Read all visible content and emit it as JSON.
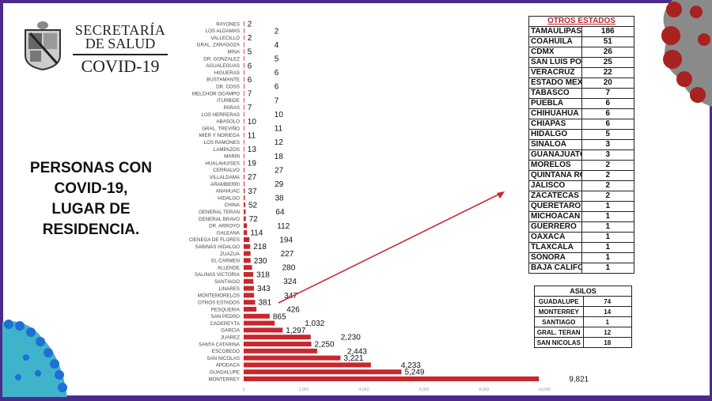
{
  "header": {
    "org_line1": "SECRETARÍA",
    "org_line2": "DE SALUD",
    "subtitle": "COVID-19"
  },
  "headline": [
    "PERSONAS CON",
    "COVID-19,",
    "LUGAR DE",
    "RESIDENCIA."
  ],
  "colors": {
    "bar": "#c8282d",
    "frame": "#4b2a8c",
    "table_title": "#c0262d"
  },
  "chart_data": {
    "type": "bar",
    "orientation": "horizontal",
    "title": "Personas con COVID-19, lugar de residencia",
    "xlim": [
      0,
      10000
    ],
    "xticks": [
      0,
      2000,
      4000,
      6000,
      8000,
      10000
    ],
    "xtick_labels": [
      "0",
      "2,000",
      "4,000",
      "6,000",
      "8,000",
      "10,000"
    ],
    "categories": [
      "RAYONES",
      "LOS ALDAMAS",
      "VALLECILLO",
      "GRAL. ZARAGOZA",
      "MINA",
      "DR. GONZALEZ",
      "AGUALEGUAS",
      "HIGUERAS",
      "BUSTAMANTE",
      "DR. COSS",
      "MELCHOR OCAMPO",
      "ITURBIDE",
      "PARAS",
      "LOS HERRERAS",
      "ABASOLO",
      "GRAL. TREVIÑO",
      "MIER Y NORIEGA",
      "LOS RAMONES",
      "LAMPAZOS",
      "MARIN",
      "HUALAHUISES",
      "CERRALVO",
      "VILLALDAMA",
      "ARAMBERRI",
      "ANAHUAC",
      "HIDALGO",
      "CHINA",
      "GENERAL TERAN",
      "GENERAL BRAVO",
      "DR. ARROYO",
      "GALEANA",
      "CIENEGA DE FLORES",
      "SABINAS HIDALGO",
      "ZUAZUA",
      "EL CARMEN",
      "ALLENDE",
      "SALINAS VICTORIA",
      "SANTIAGO",
      "LINARES",
      "MONTEMORELOS",
      "OTROS ESTADOS",
      "PESQUERIA",
      "SAN PEDRO",
      "CADEREYTA",
      "GARCIA",
      "JUAREZ",
      "SANTA CATARINA",
      "ESCOBEDO",
      "SAN NICOLAS",
      "APODACA",
      "GUADALUPE",
      "MONTERREY"
    ],
    "values": [
      2,
      2,
      2,
      4,
      5,
      5,
      6,
      6,
      6,
      6,
      7,
      7,
      7,
      10,
      10,
      11,
      11,
      12,
      13,
      18,
      19,
      27,
      27,
      29,
      37,
      38,
      52,
      64,
      72,
      112,
      114,
      194,
      218,
      227,
      230,
      280,
      318,
      324,
      343,
      347,
      381,
      426,
      865,
      1032,
      1297,
      2230,
      2250,
      2443,
      3221,
      4233,
      5249,
      9821
    ],
    "value_labels": [
      "2",
      "2",
      "2",
      "4",
      "5",
      "5",
      "6",
      "6",
      "6",
      "6",
      "7",
      "7",
      "7",
      "10",
      "10",
      "11",
      "11",
      "12",
      "13",
      "18",
      "19",
      "27",
      "27",
      "29",
      "37",
      "38",
      "52",
      "64",
      "72",
      "112",
      "114",
      "194",
      "218",
      "227",
      "230",
      "280",
      "318",
      "324",
      "343",
      "347",
      "381",
      "426",
      "865",
      "1,032",
      "1,297",
      "2,230",
      "2,250",
      "2,443",
      "3,221",
      "4,233",
      "5,249",
      "9,821"
    ]
  },
  "otros_estados": {
    "title": "OTROS ESTADOS",
    "rows": [
      {
        "name": "TAMAULIPAS",
        "value": "186"
      },
      {
        "name": "COAHUILA",
        "value": "51"
      },
      {
        "name": "CDMX",
        "value": "26"
      },
      {
        "name": "SAN LUIS POTOSI",
        "value": "25"
      },
      {
        "name": "VERACRUZ",
        "value": "22"
      },
      {
        "name": "ESTADO MEXICO",
        "value": "20"
      },
      {
        "name": "TABASCO",
        "value": "7"
      },
      {
        "name": "PUEBLA",
        "value": "6"
      },
      {
        "name": "CHIHUAHUA",
        "value": "6"
      },
      {
        "name": "CHIAPAS",
        "value": "6"
      },
      {
        "name": "HIDALGO",
        "value": "5"
      },
      {
        "name": "SINALOA",
        "value": "3"
      },
      {
        "name": "GUANAJUATO",
        "value": "3"
      },
      {
        "name": "MORELOS",
        "value": "2"
      },
      {
        "name": "QUINTANA ROO",
        "value": "2"
      },
      {
        "name": "JALISCO",
        "value": "2"
      },
      {
        "name": "ZACATECAS",
        "value": "2"
      },
      {
        "name": "QUERETARO",
        "value": "1"
      },
      {
        "name": "MICHOACAN",
        "value": "1"
      },
      {
        "name": "GUERRERO",
        "value": "1"
      },
      {
        "name": "OAXACA",
        "value": "1"
      },
      {
        "name": "TLAXCALA",
        "value": "1"
      },
      {
        "name": "SONORA",
        "value": "1"
      },
      {
        "name": "BAJA CALIFORNIA",
        "value": "1"
      }
    ]
  },
  "asilos": {
    "title": "ASILOS",
    "rows": [
      {
        "name": "GUADALUPE",
        "value": "74"
      },
      {
        "name": "MONTERREY",
        "value": "14"
      },
      {
        "name": "SANTIAGO",
        "value": "1"
      },
      {
        "name": "GRAL. TERAN",
        "value": "12"
      },
      {
        "name": "SAN NICOLAS",
        "value": "18"
      }
    ]
  }
}
